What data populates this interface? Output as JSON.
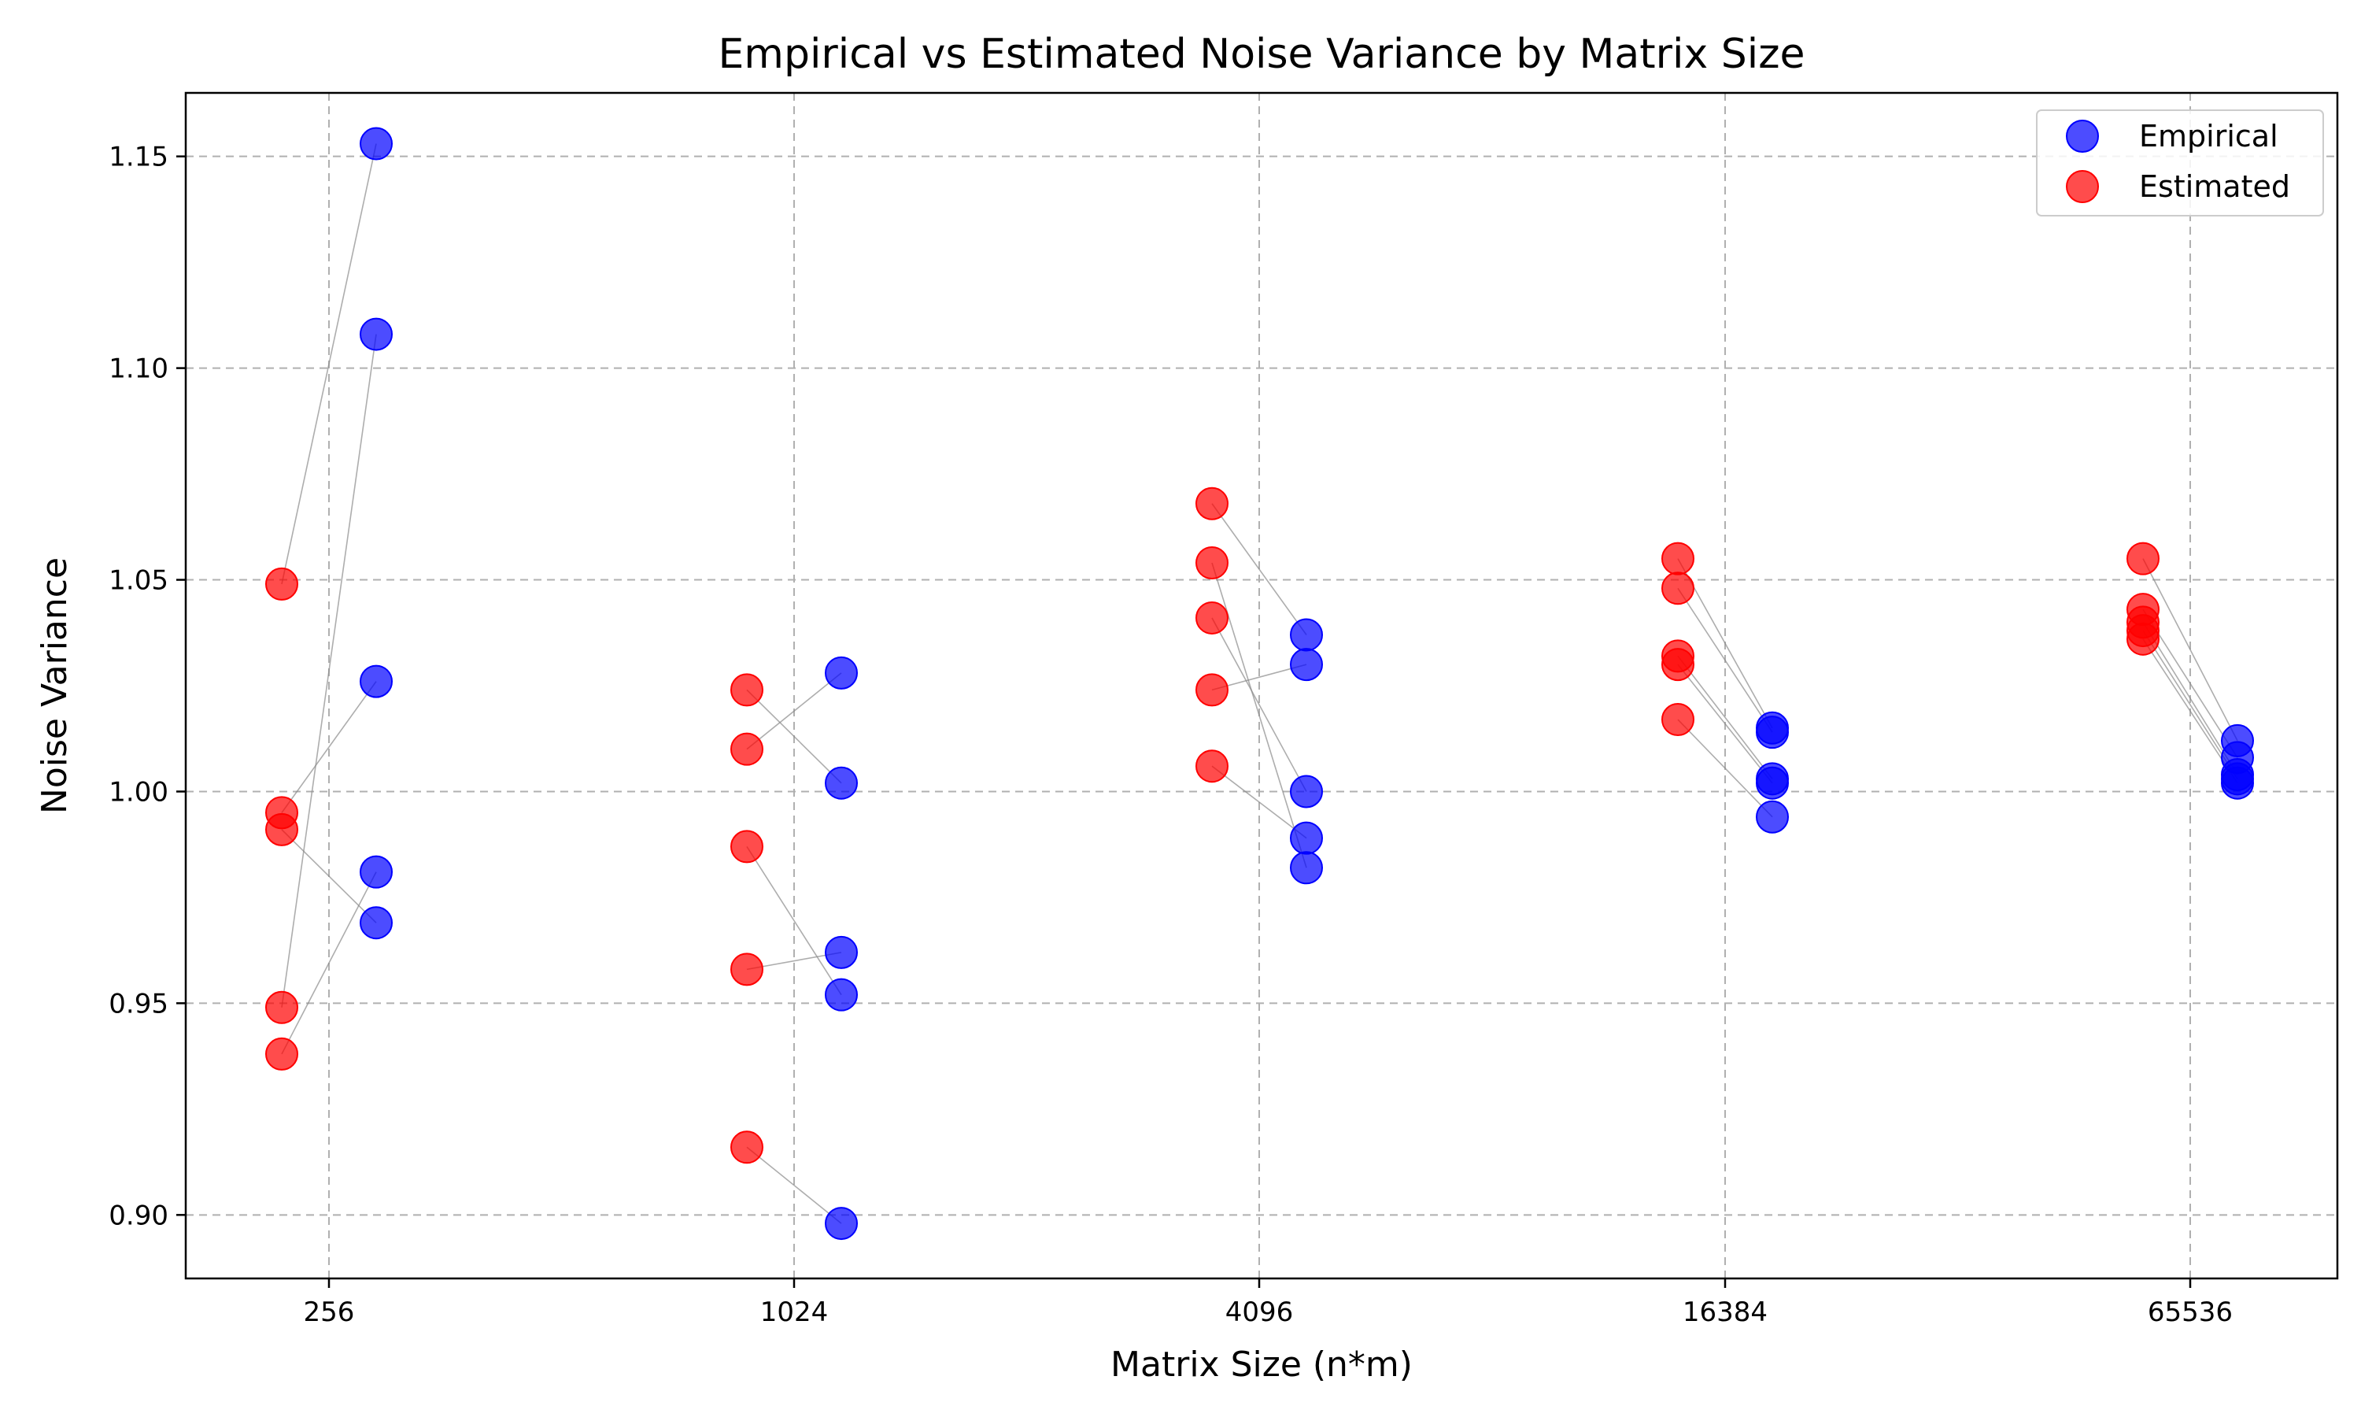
{
  "chart_data": {
    "type": "scatter",
    "title": "Empirical vs Estimated Noise Variance by Matrix Size",
    "xlabel": "Matrix Size (n*m)",
    "ylabel": "Noise Variance",
    "categories": [
      "256",
      "1024",
      "4096",
      "16384",
      "65536"
    ],
    "ylim": [
      0.885,
      1.165
    ],
    "yticks": [
      0.9,
      0.95,
      1.0,
      1.05,
      1.1,
      1.15
    ],
    "ytick_labels": [
      "0.90",
      "0.95",
      "1.00",
      "1.05",
      "1.10",
      "1.15"
    ],
    "grid": true,
    "legend_position": "top-right",
    "series": [
      {
        "name": "Empirical",
        "color": "#0000ff",
        "values": [
          [
            1.153,
            1.108,
            1.026,
            0.981,
            0.969
          ],
          [
            1.028,
            1.002,
            0.962,
            0.952,
            0.898
          ],
          [
            1.037,
            1.03,
            1.0,
            0.989,
            0.982
          ],
          [
            1.015,
            1.014,
            1.003,
            1.002,
            0.994
          ],
          [
            1.012,
            1.008,
            1.004,
            1.003,
            1.002
          ]
        ]
      },
      {
        "name": "Estimated",
        "color": "#ff0000",
        "values": [
          [
            1.049,
            0.949,
            0.995,
            0.938,
            0.991
          ],
          [
            1.01,
            1.024,
            0.958,
            0.987,
            0.916
          ],
          [
            1.068,
            1.024,
            1.041,
            1.006,
            1.054
          ],
          [
            1.055,
            1.048,
            1.032,
            1.03,
            1.017
          ],
          [
            1.055,
            1.043,
            1.04,
            1.038,
            1.036
          ]
        ]
      }
    ]
  }
}
